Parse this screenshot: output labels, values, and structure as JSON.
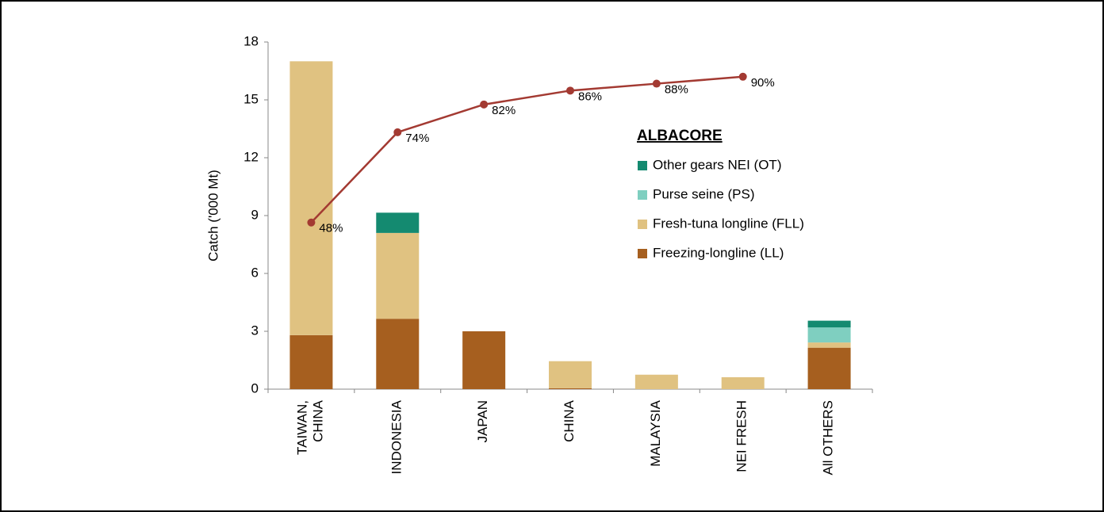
{
  "chart_data": {
    "type": "bar",
    "y_label": "Catch ('000 Mt)",
    "legend_title": "ALBACORE",
    "categories": [
      "TAIWAN, CHINA",
      "INDONESIA",
      "JAPAN",
      "CHINA",
      "MALAYSIA",
      "NEI FRESH",
      "All OTHERS"
    ],
    "series": [
      {
        "name": "Freezing-longline (LL)",
        "color": "#a65f1f",
        "values": [
          2.8,
          3.65,
          3.0,
          0.05,
          0,
          0,
          2.15
        ]
      },
      {
        "name": "Fresh-tuna longline (FLL)",
        "color": "#e0c281",
        "values": [
          14.2,
          4.45,
          0,
          1.4,
          0.75,
          0.62,
          0.27
        ]
      },
      {
        "name": "Purse seine (PS)",
        "color": "#7fcfc0",
        "values": [
          0,
          0,
          0,
          0,
          0,
          0,
          0.78
        ]
      },
      {
        "name": "Other gears NEI (OT)",
        "color": "#148a70",
        "values": [
          0,
          1.05,
          0,
          0,
          0,
          0,
          0.35
        ]
      }
    ],
    "line": {
      "type": "line",
      "axis": "y2",
      "color": "#a33a32",
      "values": [
        48,
        74,
        82,
        86,
        88,
        90
      ],
      "value_labels": [
        "48%",
        "74%",
        "82%",
        "86%",
        "88%",
        "90%"
      ]
    },
    "ylim": [
      0,
      18
    ],
    "yticks": [
      0,
      3,
      6,
      9,
      12,
      15,
      18
    ],
    "y2lim": [
      0,
      100
    ],
    "grid": false
  }
}
